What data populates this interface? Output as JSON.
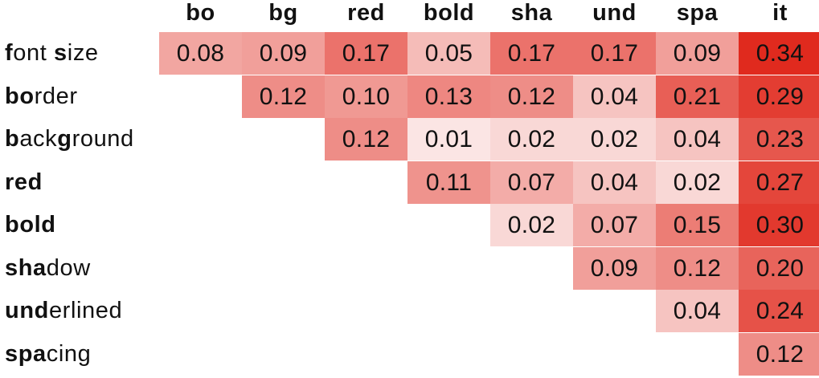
{
  "chart_data": {
    "type": "heatmap",
    "columns": [
      "bo",
      "bg",
      "red",
      "bold",
      "sha",
      "und",
      "spa",
      "it"
    ],
    "rows": [
      {
        "bold": "f",
        "rest": "ont ",
        "bold2": "s",
        "rest2": "ize"
      },
      {
        "bold": "bo",
        "rest": "rder",
        "bold2": "",
        "rest2": ""
      },
      {
        "bold": "b",
        "rest": "ack",
        "bold2": "g",
        "rest2": "round"
      },
      {
        "bold": "red",
        "rest": "",
        "bold2": "",
        "rest2": ""
      },
      {
        "bold": "bold",
        "rest": "",
        "bold2": "",
        "rest2": ""
      },
      {
        "bold": "sha",
        "rest": "dow",
        "bold2": "",
        "rest2": ""
      },
      {
        "bold": "und",
        "rest": "erlined",
        "bold2": "",
        "rest2": ""
      },
      {
        "bold": "spa",
        "rest": "cing",
        "bold2": "",
        "rest2": ""
      }
    ],
    "values": [
      [
        0.08,
        0.09,
        0.17,
        0.05,
        0.17,
        0.17,
        0.09,
        0.34
      ],
      [
        null,
        0.12,
        0.1,
        0.13,
        0.12,
        0.04,
        0.21,
        0.29
      ],
      [
        null,
        null,
        0.12,
        0.01,
        0.02,
        0.02,
        0.04,
        0.23
      ],
      [
        null,
        null,
        null,
        0.11,
        0.07,
        0.04,
        0.02,
        0.27
      ],
      [
        null,
        null,
        null,
        null,
        0.02,
        0.07,
        0.15,
        0.3
      ],
      [
        null,
        null,
        null,
        null,
        null,
        0.09,
        0.12,
        0.2
      ],
      [
        null,
        null,
        null,
        null,
        null,
        null,
        0.04,
        0.24
      ],
      [
        null,
        null,
        null,
        null,
        null,
        null,
        null,
        0.12
      ]
    ],
    "value_range": [
      0.0,
      0.34
    ],
    "colors": {
      "low": "#ffffff",
      "high": "#e02a1e"
    }
  }
}
